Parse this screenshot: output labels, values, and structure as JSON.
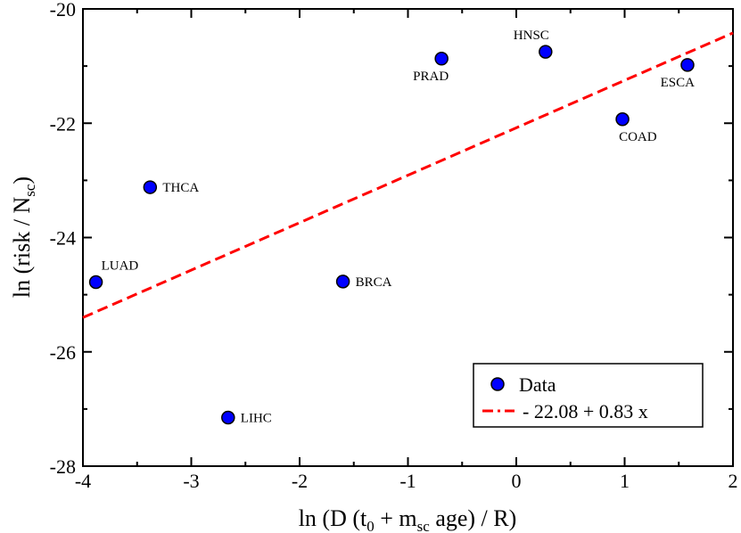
{
  "chart_data": {
    "type": "scatter",
    "xlim": [
      -4,
      2
    ],
    "ylim": [
      -28,
      -20
    ],
    "x_ticks": [
      -4,
      -3,
      -2,
      -1,
      0,
      1,
      2
    ],
    "y_ticks": [
      -28,
      -26,
      -24,
      -22,
      -20
    ],
    "x_tick_labels": [
      "-4",
      "-3",
      "-2",
      "-1",
      "0",
      "1",
      "2"
    ],
    "y_tick_labels": [
      "-28",
      "-26",
      "-24",
      "-22",
      "-20"
    ],
    "xlabel": {
      "pre": "ln (D (t",
      "sub1": "0",
      "mid": " + m",
      "sub2": "sc",
      "post": " age) / R)"
    },
    "ylabel": {
      "pre": "ln (risk / N",
      "sub": "sc",
      "post": ")"
    },
    "series": [
      {
        "name": "Data",
        "color": "#0000ff",
        "points": [
          {
            "label": "LUAD",
            "x": -3.88,
            "y": -24.78,
            "label_pos": "above-right"
          },
          {
            "label": "THCA",
            "x": -3.38,
            "y": -23.12,
            "label_pos": "right"
          },
          {
            "label": "LIHC",
            "x": -2.66,
            "y": -27.15,
            "label_pos": "right"
          },
          {
            "label": "BRCA",
            "x": -1.6,
            "y": -24.77,
            "label_pos": "right"
          },
          {
            "label": "PRAD",
            "x": -0.69,
            "y": -20.87,
            "label_pos": "below-left"
          },
          {
            "label": "HNSC",
            "x": 0.27,
            "y": -20.75,
            "label_pos": "above-left"
          },
          {
            "label": "COAD",
            "x": 0.98,
            "y": -21.93,
            "label_pos": "below-right"
          },
          {
            "label": "ESCA",
            "x": 1.58,
            "y": -20.98,
            "label_pos": "below-left"
          }
        ]
      }
    ],
    "fit": {
      "name": "- 22.08 + 0.83 x",
      "intercept": -22.08,
      "slope": 0.83,
      "color": "#ff0000",
      "style": "dashed"
    },
    "legend": {
      "position": "bottom-right",
      "entries": [
        "Data",
        "- 22.08 + 0.83 x"
      ]
    }
  }
}
